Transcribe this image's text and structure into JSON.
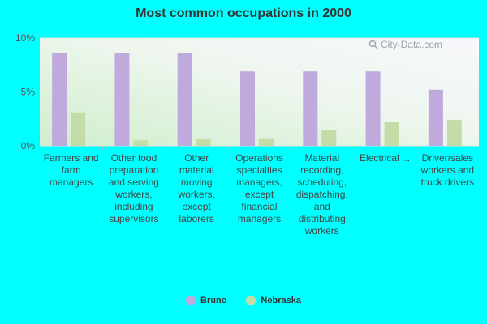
{
  "colors": {
    "background": "#00ffff",
    "series_bruno": "#c0a9dc",
    "series_nebraska": "#c6dca8",
    "grid": "#dde8dd",
    "axis_text": "#555555"
  },
  "watermark": {
    "text": "City-Data.com",
    "icon": "search-icon"
  },
  "chart_data": {
    "type": "bar",
    "title": "Most common occupations in 2000",
    "xlabel": "",
    "ylabel": "",
    "ylim": [
      0,
      10
    ],
    "yticks": [
      {
        "value": 0,
        "label": "0%"
      },
      {
        "value": 5,
        "label": "5%"
      },
      {
        "value": 10,
        "label": "10%"
      }
    ],
    "grid": true,
    "legend_position": "bottom",
    "categories": [
      "Farmers and farm managers",
      "Other food preparation and serving workers, including supervisors",
      "Other material moving workers, except laborers",
      "Operations specialties managers, except financial managers",
      "Material recording, scheduling, dispatching, and distributing workers",
      "Electrical ...",
      "Driver/sales workers and truck drivers"
    ],
    "series": [
      {
        "name": "Bruno",
        "color": "#c0a9dc",
        "values": [
          8.6,
          8.6,
          8.6,
          6.9,
          6.9,
          6.9,
          5.2
        ]
      },
      {
        "name": "Nebraska",
        "color": "#c6dca8",
        "values": [
          3.1,
          0.5,
          0.6,
          0.7,
          1.5,
          2.2,
          2.4
        ]
      }
    ]
  }
}
